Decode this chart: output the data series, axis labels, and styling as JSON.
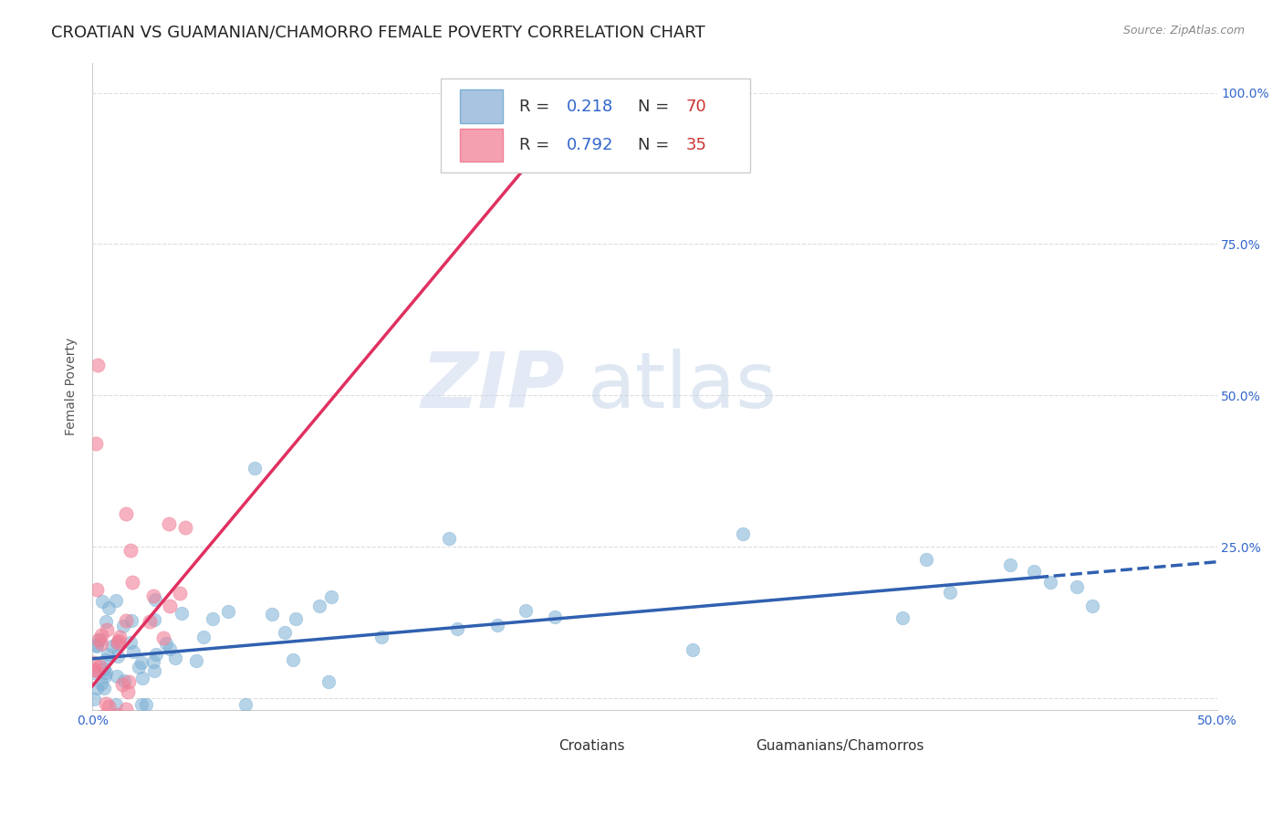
{
  "title": "CROATIAN VS GUAMANIAN/CHAMORRO FEMALE POVERTY CORRELATION CHART",
  "source": "Source: ZipAtlas.com",
  "ylabel": "Female Poverty",
  "watermark_zip": "ZIP",
  "watermark_atlas": "atlas",
  "xlim": [
    0.0,
    0.5
  ],
  "ylim": [
    -0.02,
    1.05
  ],
  "croatian_color": "#7bafd4",
  "guamanian_color": "#f08098",
  "croatian_scatter_alpha": 0.55,
  "guamanian_scatter_alpha": 0.6,
  "trendline_croatian_color": "#3060b0",
  "trendline_guamanian_color": "#e03060",
  "grid_color": "#dddddd",
  "background_color": "#ffffff",
  "title_fontsize": 13,
  "axis_label_fontsize": 10,
  "tick_fontsize": 10,
  "legend_blue_color": "#a8c4e0",
  "legend_pink_color": "#f4a0b0",
  "r_n_label_color": "#3366cc",
  "r_n_n_color": "#cc3333",
  "tick_color": "#3366cc",
  "croatian_R": 0.218,
  "croatian_N": 70,
  "guamanian_R": 0.792,
  "guamanian_N": 35,
  "trendline_cr_x0": 0.0,
  "trendline_cr_x1": 0.42,
  "trendline_cr_dash_x1": 0.5,
  "trendline_cr_intercept": 0.065,
  "trendline_cr_slope": 0.32,
  "trendline_gu_x0": 0.0,
  "trendline_gu_x1": 0.22,
  "trendline_gu_intercept": 0.02,
  "trendline_gu_slope": 4.45
}
